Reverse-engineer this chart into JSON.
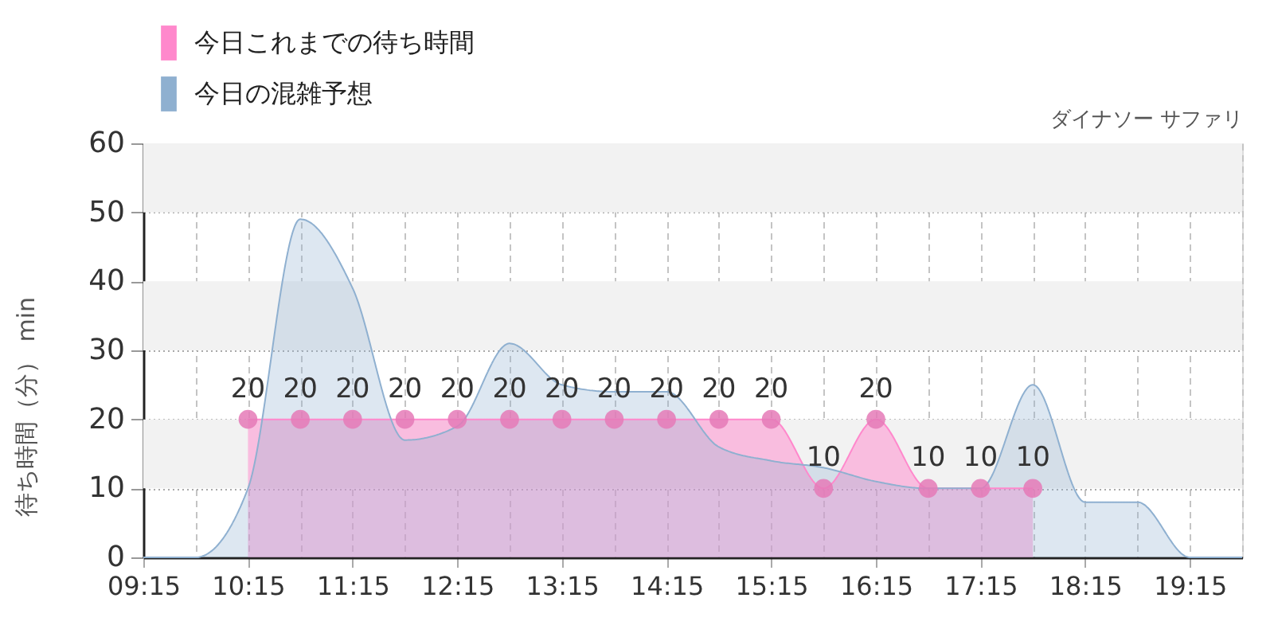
{
  "chart_data": {
    "type": "area",
    "title": "ダイナソー サファリ",
    "ylabel": "待ち時間（分） min",
    "xlim": [
      9.25,
      19.75
    ],
    "xticks": [
      {
        "value": 9.25,
        "label": "09:15"
      },
      {
        "value": 9.75,
        "label": null
      },
      {
        "value": 10.25,
        "label": "10:15"
      },
      {
        "value": 10.75,
        "label": null
      },
      {
        "value": 11.25,
        "label": "11:15"
      },
      {
        "value": 11.75,
        "label": null
      },
      {
        "value": 12.25,
        "label": "12:15"
      },
      {
        "value": 12.75,
        "label": null
      },
      {
        "value": 13.25,
        "label": "13:15"
      },
      {
        "value": 13.75,
        "label": null
      },
      {
        "value": 14.25,
        "label": "14:15"
      },
      {
        "value": 14.75,
        "label": null
      },
      {
        "value": 15.25,
        "label": "15:15"
      },
      {
        "value": 15.75,
        "label": null
      },
      {
        "value": 16.25,
        "label": "16:15"
      },
      {
        "value": 16.75,
        "label": null
      },
      {
        "value": 17.25,
        "label": "17:15"
      },
      {
        "value": 17.75,
        "label": null
      },
      {
        "value": 18.25,
        "label": "18:15"
      },
      {
        "value": 18.75,
        "label": null
      },
      {
        "value": 19.25,
        "label": "19:15"
      },
      {
        "value": 19.75,
        "label": null
      }
    ],
    "ylim": [
      0,
      60
    ],
    "yticks": [
      0,
      10,
      20,
      30,
      40,
      50,
      60
    ],
    "grid": true,
    "legend": "top left",
    "bands": [
      {
        "axis": "y",
        "from": 10,
        "to": 20,
        "color": "#f2f2f2"
      },
      {
        "axis": "y",
        "from": 30,
        "to": 40,
        "color": "#f2f2f2"
      },
      {
        "axis": "y",
        "from": 50,
        "to": 60,
        "color": "#f2f2f2"
      }
    ],
    "series": [
      {
        "name": "今日これまでの待ち時間",
        "color": "#ff88cc",
        "marker": "circle",
        "x": [
          10.25,
          10.75,
          11.25,
          11.75,
          12.25,
          12.75,
          13.25,
          13.75,
          14.25,
          14.75,
          15.25,
          15.75,
          16.25,
          16.75,
          17.25,
          17.75
        ],
        "values": [
          20,
          20,
          20,
          20,
          20,
          20,
          20,
          20,
          20,
          20,
          20,
          10,
          20,
          10,
          10,
          10
        ],
        "value_labels": [
          "20",
          "20",
          "20",
          "20",
          "20",
          "20",
          "20",
          "20",
          "20",
          "20",
          "20",
          "10",
          "20",
          "10",
          "10",
          "10"
        ]
      },
      {
        "name": "今日の混雑予想",
        "color": "#8fb0d0",
        "marker": "none",
        "x": [
          9.25,
          9.75,
          10.25,
          10.75,
          11.25,
          11.75,
          12.25,
          12.75,
          13.25,
          13.75,
          14.25,
          14.75,
          15.25,
          15.75,
          16.25,
          16.75,
          17.25,
          17.75,
          18.25,
          18.75,
          19.25,
          19.75
        ],
        "values": [
          0,
          0,
          10,
          49,
          39,
          17,
          19,
          31,
          25,
          24,
          24,
          16,
          14,
          13,
          11,
          10,
          10,
          25,
          8,
          8,
          0,
          0
        ]
      }
    ]
  }
}
